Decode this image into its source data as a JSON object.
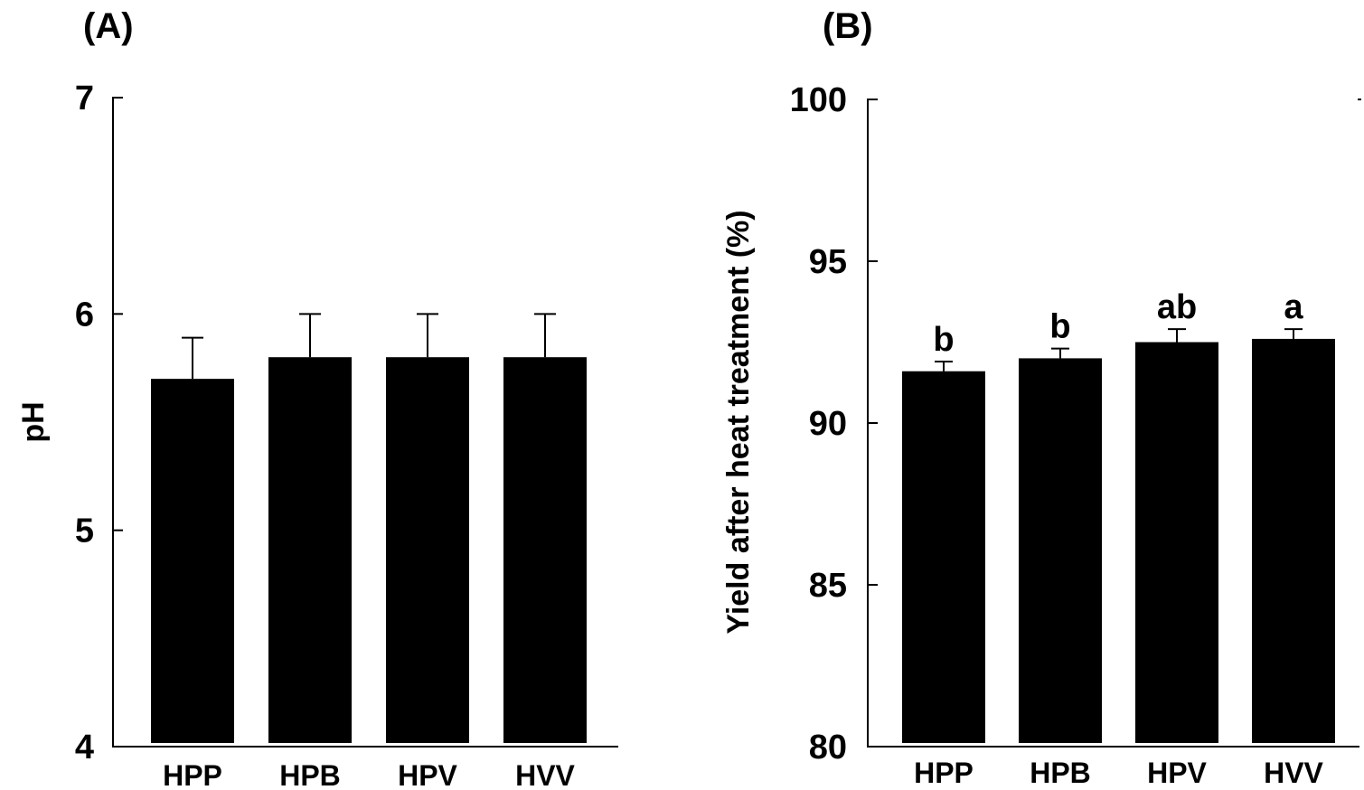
{
  "chart_data": [
    {
      "type": "bar",
      "panel_label": "(A)",
      "categories": [
        "HPP",
        "HPB",
        "HPV",
        "HVV"
      ],
      "values": [
        5.7,
        5.8,
        5.8,
        5.8
      ],
      "error": [
        0.19,
        0.2,
        0.2,
        0.2
      ],
      "ylabel": "pH",
      "xlabel": "",
      "ylim": [
        4,
        7
      ],
      "yticks": [
        4,
        5,
        6,
        7
      ],
      "ytick_labels": [
        "4",
        "5",
        "6",
        "7"
      ],
      "grid": false,
      "bar_color": "#000000"
    },
    {
      "type": "bar",
      "panel_label": "(B)",
      "categories": [
        "HPP",
        "HPB",
        "HPV",
        "HVV"
      ],
      "values": [
        91.6,
        92.0,
        92.5,
        92.6
      ],
      "error": [
        0.3,
        0.3,
        0.4,
        0.3
      ],
      "significance": [
        "b",
        "b",
        "ab",
        "a"
      ],
      "ylabel": "Yield after heat treatment (%)",
      "xlabel": "",
      "ylim": [
        80,
        100
      ],
      "yticks": [
        80,
        85,
        90,
        95,
        100
      ],
      "ytick_labels": [
        "80",
        "85",
        "90",
        "95",
        "100"
      ],
      "grid": false,
      "bar_color": "#000000"
    }
  ]
}
